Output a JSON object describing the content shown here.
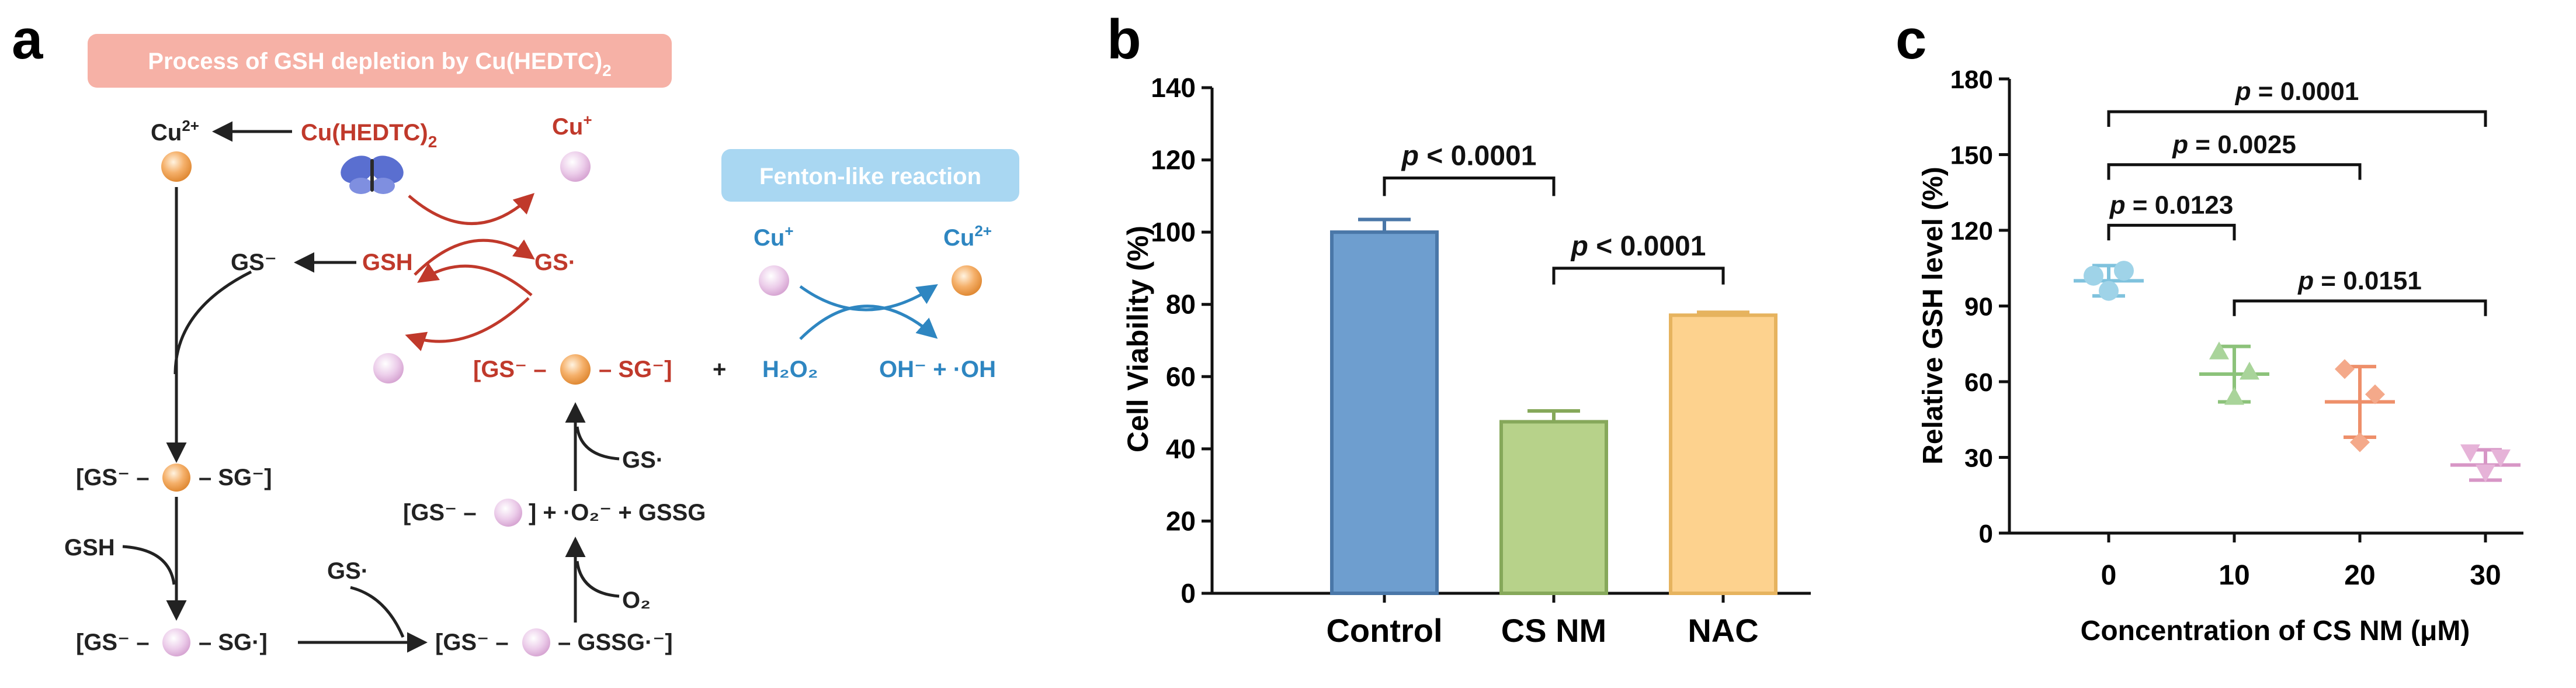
{
  "panel_letters": {
    "a": "a",
    "b": "b",
    "c": "c"
  },
  "colors": {
    "red": "#c0392b",
    "blue": "#2e86c1",
    "cu2_orange": "#f0a65a",
    "cu1_pink": "#e8c4e6",
    "banner_red": "#f6b1a6",
    "banner_blue": "#a9d7f2",
    "bar_blue": "#6e9ecf",
    "bar_green": "#b7d28a",
    "bar_orange": "#fdd28e"
  },
  "panel_a": {
    "banner_gsh": "Process of GSH depletion by Cu(HEDTC)",
    "banner_gsh_sub": "2",
    "banner_fenton": "Fenton-like reaction",
    "cu2_label": "Cu",
    "cu2_sup": "2+",
    "cu1_label": "Cu",
    "cu1_sup": "+",
    "cuhedtc": "Cu(HEDTC)",
    "cuhedtc_sub": "2",
    "butterfly_icon": "butterfly-icon",
    "gs_minus": "GS⁻",
    "gsh": "GSH",
    "gs_radical": "GS·",
    "complex_red_left": "[GS⁻ –",
    "complex_red_right": "– SG⁻]",
    "plus": "+",
    "h2o2": "H₂O₂",
    "oh_products": "OH⁻ + ·OH",
    "fenton_cu1": "Cu",
    "fenton_cu1_sup": "+",
    "fenton_cu2": "Cu",
    "fenton_cu2_sup": "2+",
    "left_complex1_l": "[GS⁻ –",
    "left_complex1_r": "– SG⁻]",
    "gsh_side": "GSH",
    "left_complex2_l": "[GS⁻ –",
    "left_complex2_r": "– SG·]",
    "gs_radical_bottom": "GS·",
    "bottom_complex_l": "[GS⁻ –",
    "bottom_complex_r": "– GSSG·⁻]",
    "o2": "O₂",
    "mid_complex_l": "[GS⁻ –",
    "mid_complex_r": "] + ·O₂⁻ + GSSG",
    "gs_radical_right": "GS·"
  },
  "panel_b_chart": {
    "type": "bar",
    "categories": [
      "Control",
      "CS NM",
      "NAC"
    ],
    "values": [
      100,
      47.5,
      77
    ],
    "errors": [
      3.5,
      3.0,
      0.8
    ],
    "ylabel": "Cell Viability (%)",
    "ylim": [
      0,
      140
    ],
    "yticks": [
      "0",
      "20",
      "40",
      "60",
      "80",
      "100",
      "120",
      "140"
    ],
    "ytick_values": [
      0,
      20,
      40,
      60,
      80,
      100,
      120,
      140
    ],
    "annotations": [
      {
        "from": 0,
        "to": 1,
        "text_p": "p",
        "text_rest": " < 0.0001",
        "level": 115,
        "drop": 5
      },
      {
        "from": 1,
        "to": 2,
        "text_p": "p",
        "text_rest": " < 0.0001",
        "level": 90,
        "drop": 4.5
      }
    ]
  },
  "panel_c_chart": {
    "type": "scatter",
    "xlabel": "Concentration of CS NM (μM)",
    "ylabel": "Relative GSH level (%)",
    "ylim": [
      0,
      180
    ],
    "yticks": [
      "0",
      "30",
      "60",
      "90",
      "120",
      "150",
      "180"
    ],
    "ytick_values": [
      0,
      30,
      60,
      90,
      120,
      150,
      180
    ],
    "categories": [
      "0",
      "10",
      "20",
      "30"
    ],
    "groups": [
      {
        "name": "0",
        "marker": "circle",
        "color": "#9fd3e8",
        "points": [
          102,
          96,
          104
        ],
        "mean": 100,
        "sd": 6
      },
      {
        "name": "10",
        "marker": "triangle-up",
        "color": "#a9d49a",
        "points": [
          72,
          54,
          64
        ],
        "mean": 63,
        "sd": 11
      },
      {
        "name": "20",
        "marker": "diamond",
        "color": "#f4a98a",
        "points": [
          65,
          36,
          55
        ],
        "mean": 52,
        "sd": 14
      },
      {
        "name": "30",
        "marker": "triangle-down",
        "color": "#e6b3d8",
        "points": [
          32,
          24,
          30
        ],
        "mean": 27,
        "sd": 6
      }
    ],
    "annotations": [
      {
        "from": 0,
        "to": 3,
        "text_p": "p",
        "text_rest": " = 0.0001",
        "level": 167,
        "drop": 6
      },
      {
        "from": 0,
        "to": 2,
        "text_p": "p",
        "text_rest": " = 0.0025",
        "level": 146,
        "drop": 6
      },
      {
        "from": 0,
        "to": 1,
        "text_p": "p",
        "text_rest": " = 0.0123",
        "level": 122,
        "drop": 6
      },
      {
        "from": 1,
        "to": 3,
        "text_p": "p",
        "text_rest": " = 0.0151",
        "level": 92,
        "drop": 6
      }
    ]
  }
}
